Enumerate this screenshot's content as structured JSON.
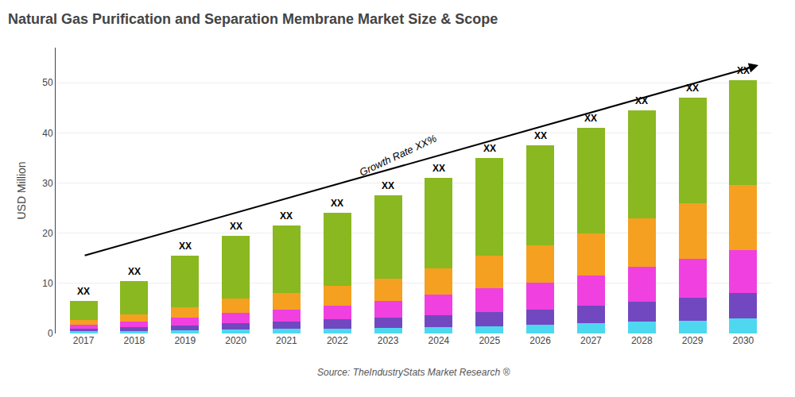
{
  "chart_data": {
    "type": "bar",
    "title": "Natural Gas Purification and Separation Membrane Market Size & Scope",
    "ylabel": "USD Million",
    "source": "Source: TheIndustryStats Market Research ®",
    "categories": [
      "2017",
      "2018",
      "2019",
      "2020",
      "2021",
      "2022",
      "2023",
      "2024",
      "2025",
      "2026",
      "2027",
      "2028",
      "2029",
      "2030"
    ],
    "stacked": true,
    "series": [
      {
        "color": "#4dd8f0",
        "values": [
          0.4,
          0.5,
          0.6,
          0.8,
          0.9,
          1.0,
          1.1,
          1.3,
          1.5,
          1.7,
          2.0,
          2.3,
          2.6,
          3.0
        ]
      },
      {
        "color": "#7248c0",
        "values": [
          0.5,
          0.7,
          1.0,
          1.3,
          1.5,
          1.8,
          2.1,
          2.4,
          2.8,
          3.1,
          3.5,
          4.0,
          4.5,
          5.0
        ]
      },
      {
        "color": "#f040e0",
        "values": [
          0.8,
          1.1,
          1.5,
          2.0,
          2.3,
          2.8,
          3.3,
          4.0,
          4.8,
          5.4,
          6.1,
          7.0,
          7.8,
          8.6
        ]
      },
      {
        "color": "#f5a020",
        "values": [
          1.0,
          1.5,
          2.1,
          2.8,
          3.3,
          3.9,
          4.5,
          5.3,
          6.4,
          7.3,
          8.4,
          9.7,
          11.1,
          13.0
        ]
      },
      {
        "color": "#8ab820",
        "values": [
          3.8,
          6.7,
          10.3,
          12.6,
          13.5,
          14.5,
          16.5,
          18.0,
          19.5,
          20.0,
          21.0,
          21.5,
          21.0,
          20.9
        ]
      }
    ],
    "bar_labels": [
      "XX",
      "XX",
      "XX",
      "XX",
      "XX",
      "XX",
      "XX",
      "XX",
      "XX",
      "XX",
      "XX",
      "XX",
      "XX",
      "XX"
    ],
    "annotations": [
      "Growth Rate XX%"
    ],
    "ylim": [
      0,
      57
    ],
    "yticks": [
      0,
      10,
      20,
      30,
      40,
      50
    ],
    "grid": true
  }
}
